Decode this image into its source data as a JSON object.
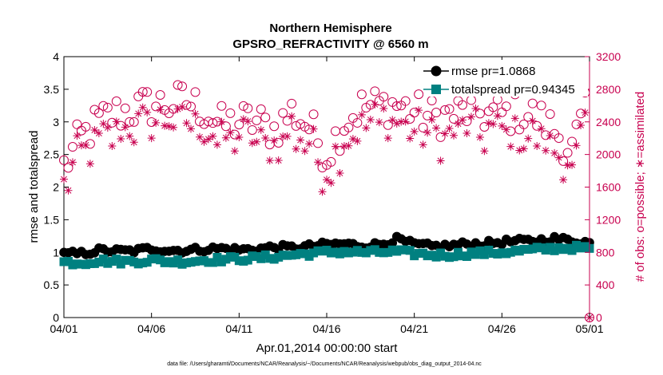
{
  "chart_data": {
    "type": "line",
    "title": "Northern Hemisphere",
    "subtitle": "GPSRO_REFRACTIVITY @ 6560 m",
    "xlabel": "Apr.01,2014 00:00:00 start",
    "ylabel": "rmse and totalspread",
    "ylabel_right": "# of obs: o=possible; ∗=assimilated",
    "x_ticks": [
      "04/01",
      "04/06",
      "04/11",
      "04/16",
      "04/21",
      "04/26",
      "05/01"
    ],
    "y_ticks": [
      "0",
      "0.5",
      "1",
      "1.5",
      "2",
      "2.5",
      "3",
      "3.5",
      "4"
    ],
    "y2_ticks": [
      "0",
      "400",
      "800",
      "1200",
      "1600",
      "2000",
      "2400",
      "2800",
      "3200"
    ],
    "xlim": [
      0,
      30
    ],
    "ylim": [
      0,
      4
    ],
    "y2lim": [
      0,
      3200
    ],
    "legend": {
      "position": "top-right",
      "entries": [
        "rmse pr=1.0868",
        "totalspread pr=0.94345"
      ]
    },
    "colors": {
      "rmse": "#000000",
      "totalspread": "#008080",
      "obs": "#c8004f"
    },
    "footnote": "data file: /Users/gharamti/Documents/NCAR/Reanalysis/~/Documents/NCAR/Reanalysis/webpub/obs_diag_output_2014-04.nc",
    "series": [
      {
        "name": "rmse",
        "axis": "left",
        "marker": "filled-circle",
        "day_values": [
          0.97,
          0.98,
          1.03,
          1.02,
          1.02,
          1.06,
          1.03,
          1.03,
          1.05,
          1.06,
          1.04,
          1.05,
          1.08,
          1.07,
          1.09,
          1.12,
          1.13,
          1.1,
          1.12,
          1.2,
          1.12,
          1.09,
          1.1,
          1.13,
          1.13,
          1.16,
          1.17,
          1.18,
          1.21,
          1.18,
          1.15
        ]
      },
      {
        "name": "totalspread",
        "axis": "left",
        "marker": "filled-square",
        "day_values": [
          0.85,
          0.84,
          0.87,
          0.86,
          0.86,
          0.88,
          0.86,
          0.86,
          0.88,
          0.89,
          0.9,
          0.91,
          0.93,
          0.96,
          0.98,
          1.0,
          1.01,
          1.0,
          1.0,
          1.01,
          0.98,
          0.96,
          0.96,
          0.98,
          0.99,
          1.0,
          1.02,
          1.04,
          1.06,
          1.07,
          1.06
        ]
      },
      {
        "name": "obs possible",
        "axis": "right",
        "marker": "open-circle",
        "day_values": [
          1850,
          2200,
          2400,
          2500,
          2550,
          2600,
          2620,
          2650,
          2550,
          2350,
          2400,
          2400,
          2300,
          2520,
          2350,
          2000,
          2400,
          2580,
          2600,
          2620,
          2520,
          2450,
          2480,
          2520,
          2500,
          2480,
          2520,
          2450,
          2300,
          2050,
          2650
        ]
      },
      {
        "name": "obs assimilated",
        "axis": "right",
        "marker": "asterisk",
        "day_values": [
          1750,
          2000,
          2200,
          2300,
          2350,
          2380,
          2400,
          2400,
          2350,
          2150,
          2150,
          2150,
          2050,
          2300,
          2150,
          1800,
          2200,
          2350,
          2380,
          2400,
          2300,
          2250,
          2280,
          2300,
          2280,
          2250,
          2300,
          2230,
          2100,
          1800,
          2500
        ]
      }
    ]
  }
}
